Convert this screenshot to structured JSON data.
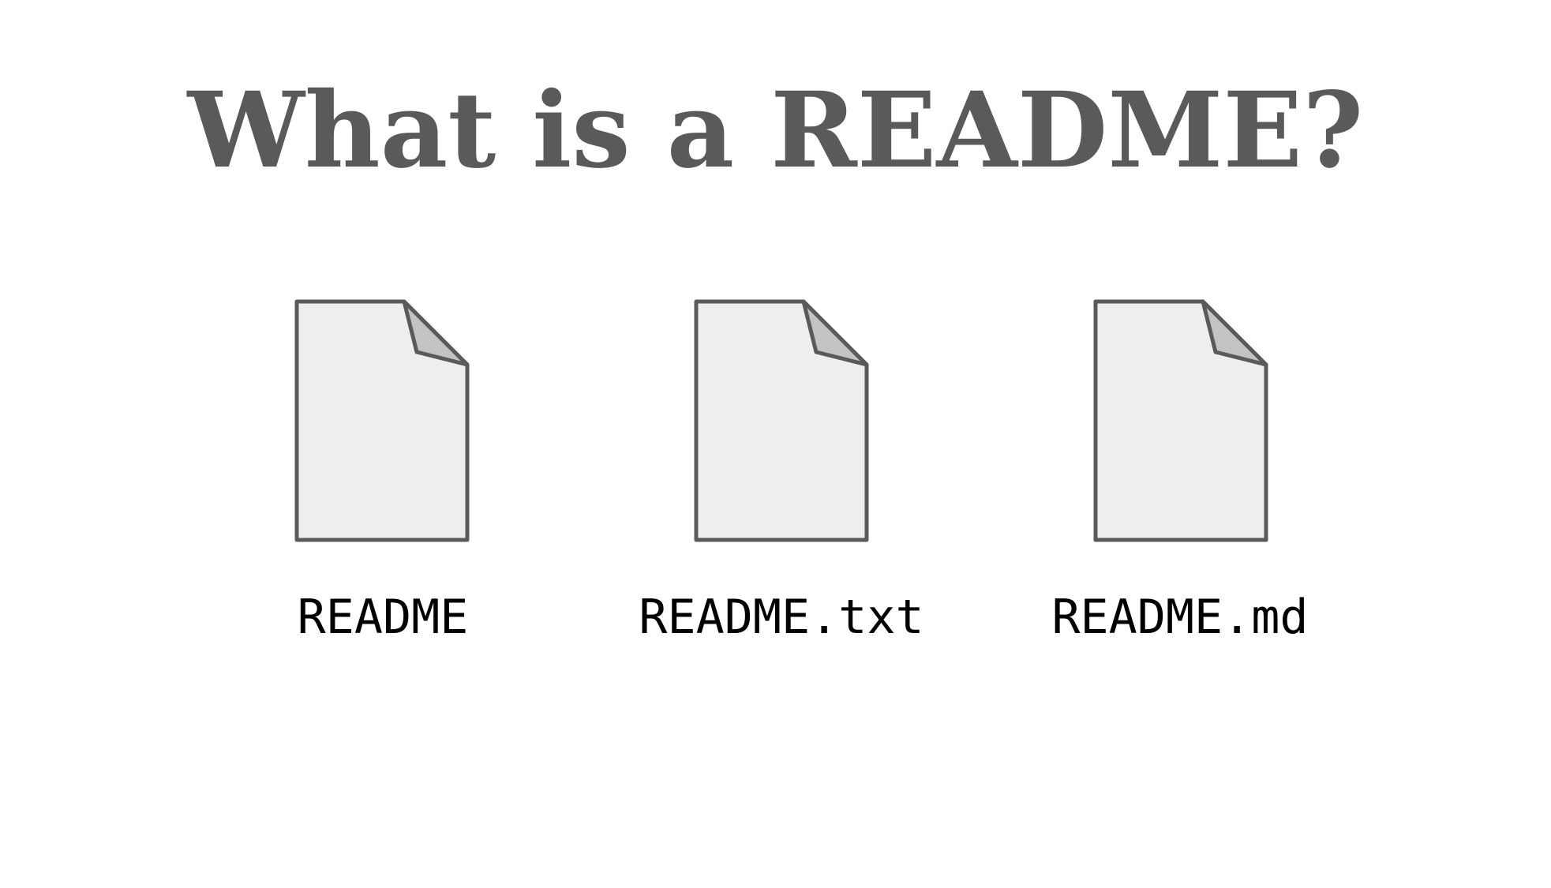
{
  "title": "What is a README?",
  "colors": {
    "title": "#5a5a5a",
    "doc_fill": "#eeeeee",
    "doc_fold": "#c3c3c3",
    "doc_stroke": "#5a5a5a",
    "label": "#000000"
  },
  "documents": [
    {
      "label": "README",
      "icon": "document-icon"
    },
    {
      "label": "README.txt",
      "icon": "document-icon"
    },
    {
      "label": "README.md",
      "icon": "document-icon"
    }
  ]
}
